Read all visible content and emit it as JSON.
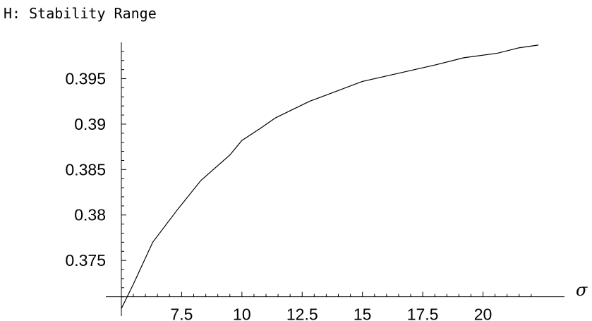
{
  "chart_data": {
    "type": "line",
    "title": "H: Stability   Range",
    "xlabel": "σ",
    "ylabel": "",
    "grid": false,
    "x_ticks": [
      {
        "value": 7.5,
        "label": "7.5"
      },
      {
        "value": 10,
        "label": "10"
      },
      {
        "value": 12.5,
        "label": "12.5"
      },
      {
        "value": 15,
        "label": "15"
      },
      {
        "value": 17.5,
        "label": "17.5"
      },
      {
        "value": 20,
        "label": "20"
      }
    ],
    "y_ticks": [
      {
        "value": 0.375,
        "label": "0.375"
      },
      {
        "value": 0.38,
        "label": "0.38"
      },
      {
        "value": 0.385,
        "label": "0.385"
      },
      {
        "value": 0.39,
        "label": "0.39"
      },
      {
        "value": 0.395,
        "label": "0.395"
      }
    ],
    "xlim": [
      5.0,
      23.0
    ],
    "ylim": [
      0.3695,
      0.399
    ],
    "axis_origin": {
      "x": 5.0,
      "y": 0.371
    },
    "series": [
      {
        "x": [
          5.0,
          5.5,
          6.3,
          7.3,
          8.3,
          9.5,
          10.0,
          10.8,
          11.4,
          12.8,
          14.0,
          15.0,
          16.5,
          18.0,
          19.2,
          20.6,
          21.5,
          22.3
        ],
        "y": [
          0.3697,
          0.3724,
          0.377,
          0.3805,
          0.3838,
          0.3866,
          0.3882,
          0.3896,
          0.3907,
          0.3925,
          0.3937,
          0.3947,
          0.3956,
          0.3965,
          0.3973,
          0.3978,
          0.3984,
          0.3987
        ]
      }
    ]
  }
}
